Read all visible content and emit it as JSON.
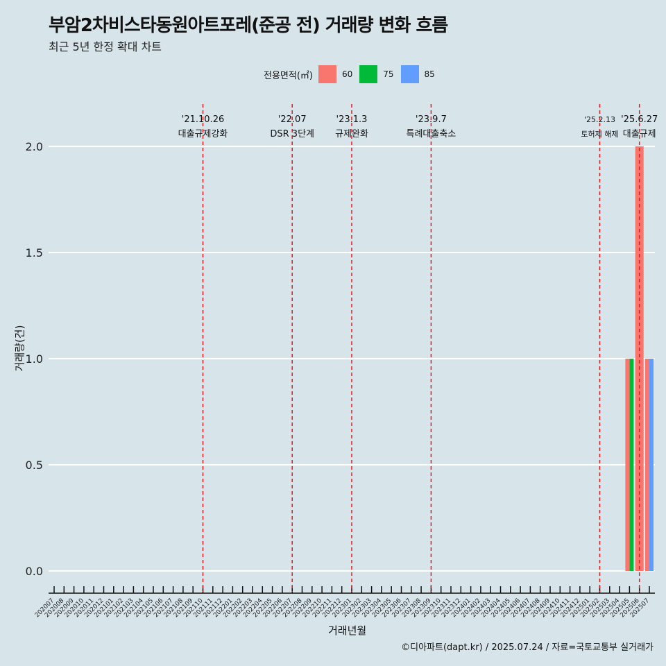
{
  "page": {
    "title": "부암2차비스타동원아트포레(준공 전) 거래량 변화 흐름",
    "subtitle": "최근 5년 한정 확대 차트",
    "caption": "©디아파트(dapt.kr) / 2025.07.24 / 자료=국토교통부 실거래가"
  },
  "colors": {
    "background": "#d7e4ea",
    "s60": "#f8766d",
    "s75": "#00ba38",
    "s85": "#619cff",
    "event_line": "#e41a1c"
  },
  "chart_data": {
    "type": "bar",
    "title": "부암2차비스타동원아트포레(준공 전) 거래량 변화 흐름",
    "subtitle": "최근 5년 한정 확대 차트",
    "xlabel": "거래년월",
    "ylabel": "거래량(건)",
    "legend_title": "전용면적(㎡)",
    "legend_position": "top",
    "grid": "horizontal major lines",
    "ylim": [
      0,
      2
    ],
    "yticks": [
      "0.0",
      "0.5",
      "1.0",
      "1.5",
      "2.0"
    ],
    "categories": [
      "202007",
      "202008",
      "202009",
      "202010",
      "202011",
      "202012",
      "202101",
      "202102",
      "202103",
      "202104",
      "202105",
      "202106",
      "202107",
      "202108",
      "202109",
      "202110",
      "202111",
      "202112",
      "202201",
      "202202",
      "202203",
      "202204",
      "202205",
      "202206",
      "202207",
      "202208",
      "202209",
      "202210",
      "202211",
      "202212",
      "202301",
      "202302",
      "202303",
      "202304",
      "202305",
      "202306",
      "202307",
      "202308",
      "202309",
      "202310",
      "202311",
      "202312",
      "202401",
      "202402",
      "202403",
      "202404",
      "202405",
      "202406",
      "202407",
      "202408",
      "202409",
      "202410",
      "202411",
      "202412",
      "202501",
      "202502",
      "202503",
      "202504",
      "202505",
      "202506",
      "202507"
    ],
    "series": [
      {
        "name": "60",
        "color": "#f8766d",
        "points": [
          {
            "x": "202505",
            "y": 1
          },
          {
            "x": "202506",
            "y": 2
          },
          {
            "x": "202507",
            "y": 1
          }
        ]
      },
      {
        "name": "75",
        "color": "#00ba38",
        "points": [
          {
            "x": "202505",
            "y": 1
          }
        ]
      },
      {
        "name": "85",
        "color": "#619cff",
        "points": [
          {
            "x": "202507",
            "y": 1
          }
        ]
      }
    ],
    "events": [
      {
        "x": "202110",
        "date": "'21.10.26",
        "label": "대출규제강화"
      },
      {
        "x": "202207",
        "date": "'22.07",
        "label": "DSR 3단계"
      },
      {
        "x": "202301",
        "date": "'23.1.3",
        "label": "규제완화"
      },
      {
        "x": "202309",
        "date": "'23.9.7",
        "label": "특례대출축소"
      },
      {
        "x": "202502",
        "date": "'25.2.13",
        "label": "토허제 해제"
      },
      {
        "x": "202506",
        "date": "'25.6.27",
        "label": "대출규제"
      }
    ]
  }
}
